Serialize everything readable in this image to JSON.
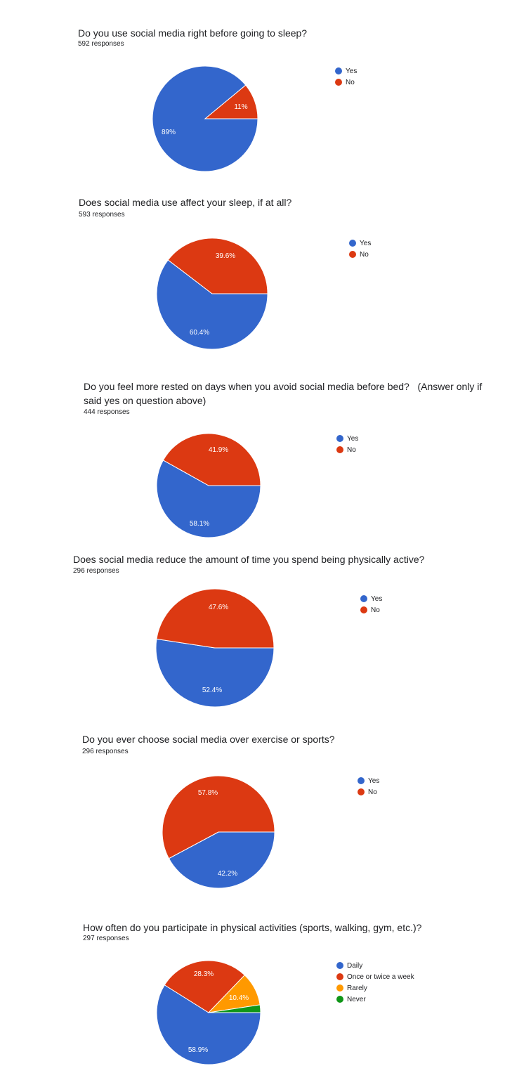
{
  "colors": {
    "blue": "#3366cc",
    "red": "#dc3912",
    "orange": "#ff9900",
    "green": "#109618"
  },
  "chart_data": [
    {
      "type": "pie",
      "title": "Do you use social media right before going to sleep?",
      "subtitle": "592 responses",
      "legend_position": "right",
      "categories": [
        "Yes",
        "No"
      ],
      "values": [
        89,
        11
      ],
      "labels": [
        "89%",
        "11%"
      ]
    },
    {
      "type": "pie",
      "title": "Does social media use affect your sleep, if at all?",
      "subtitle": "593 responses",
      "legend_position": "right",
      "categories": [
        "Yes",
        "No"
      ],
      "values": [
        60.4,
        39.6
      ],
      "labels": [
        "60.4%",
        "39.6%"
      ]
    },
    {
      "type": "pie",
      "title": "Do you feel more rested on days when you avoid social media before bed?   (Answer only if said yes on question above)",
      "subtitle": "444 responses",
      "legend_position": "right",
      "categories": [
        "Yes",
        "No"
      ],
      "values": [
        58.1,
        41.9
      ],
      "labels": [
        "58.1%",
        "41.9%"
      ]
    },
    {
      "type": "pie",
      "title": "Does social media reduce the amount of time you spend being physically active?",
      "subtitle": "296 responses",
      "legend_position": "right",
      "categories": [
        "Yes",
        "No"
      ],
      "values": [
        52.4,
        47.6
      ],
      "labels": [
        "52.4%",
        "47.6%"
      ]
    },
    {
      "type": "pie",
      "title": "Do you ever choose social media over exercise or sports?",
      "subtitle": "296 responses",
      "legend_position": "right",
      "categories": [
        "Yes",
        "No"
      ],
      "values": [
        42.2,
        57.8
      ],
      "labels": [
        "42.2%",
        "57.8%"
      ]
    },
    {
      "type": "pie",
      "title": "How often do you participate in physical activities (sports, walking, gym, etc.)?",
      "subtitle": "297 responses",
      "legend_position": "right",
      "categories": [
        "Daily",
        "Once or twice a week",
        "Rarely",
        "Never"
      ],
      "values": [
        58.9,
        28.3,
        10.4,
        2.4
      ],
      "labels": [
        "58.9%",
        "28.3%",
        "10.4%",
        ""
      ]
    }
  ]
}
